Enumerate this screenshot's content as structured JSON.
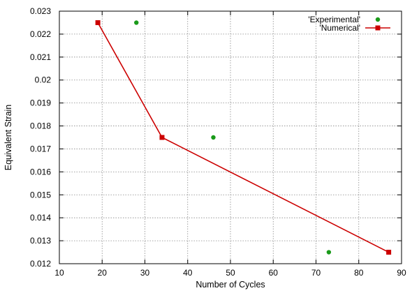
{
  "chart_data": {
    "type": "scatter",
    "xlabel": "Number of Cycles",
    "ylabel": "Equivalent Strain",
    "xlim": [
      10,
      90
    ],
    "ylim": [
      0.012,
      0.023
    ],
    "xticks": [
      10,
      20,
      30,
      40,
      50,
      60,
      70,
      80,
      90
    ],
    "yticks": [
      0.012,
      0.013,
      0.014,
      0.015,
      0.016,
      0.017,
      0.018,
      0.019,
      0.02,
      0.021,
      0.022,
      0.023
    ],
    "xtick_labels": [
      "10",
      "20",
      "30",
      "40",
      "50",
      "60",
      "70",
      "80",
      "90"
    ],
    "ytick_labels": [
      "0.012",
      "0.013",
      "0.014",
      "0.015",
      "0.016",
      "0.017",
      "0.018",
      "0.019",
      "0.02",
      "0.021",
      "0.022",
      "0.023"
    ],
    "grid": true,
    "legend_position": "top-right",
    "series": [
      {
        "name": "'Experimental'",
        "style": "points",
        "marker": "circle",
        "color": "#1a9a1a",
        "x": [
          28,
          46,
          73
        ],
        "y": [
          0.0225,
          0.0175,
          0.0125
        ]
      },
      {
        "name": "'Numerical'",
        "style": "linespoints",
        "marker": "square",
        "color": "#cc0000",
        "x": [
          19,
          34,
          87
        ],
        "y": [
          0.0225,
          0.0175,
          0.0125
        ]
      }
    ]
  }
}
